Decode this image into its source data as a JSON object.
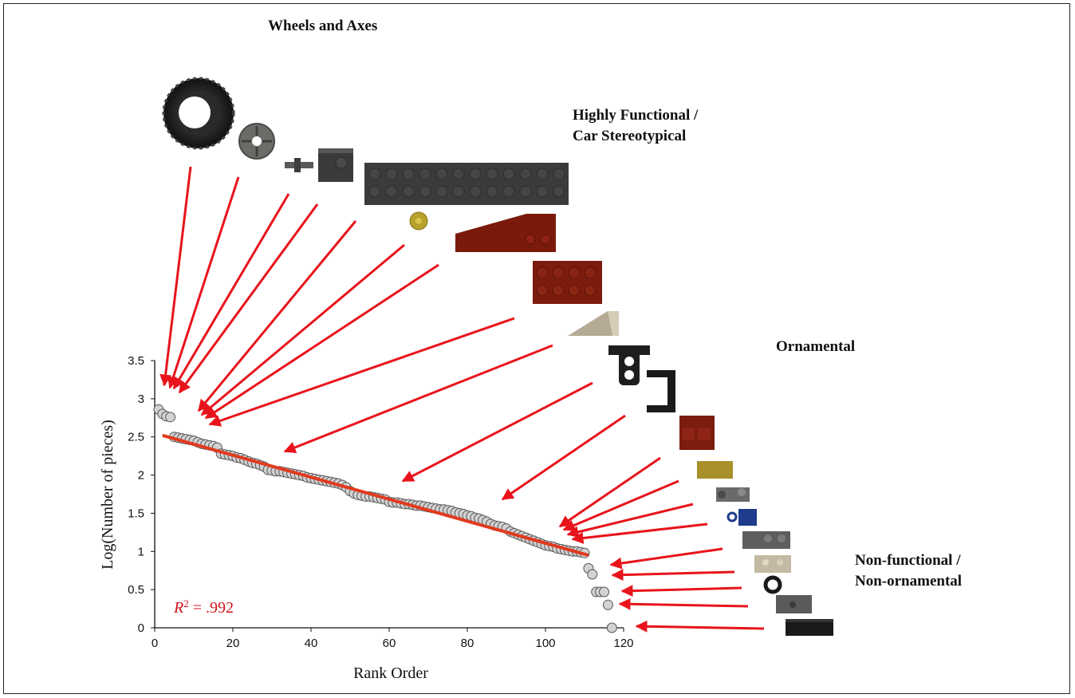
{
  "categories": {
    "wheels": "Wheels and Axes",
    "functional_line1": "Highly Functional /",
    "functional_line2": "Car Stereotypical",
    "ornamental": "Ornamental",
    "nonfunc_line1": "Non-functional /",
    "nonfunc_line2": "Non-ornamental"
  },
  "annotation": {
    "r2_label": "R",
    "r2_sup": "2",
    "r2_value": " = .992"
  },
  "colors": {
    "arrow": "#e8141c",
    "fit": "#e23a1e",
    "marker_fill": "#d2d2d2",
    "marker_stroke": "#555555"
  },
  "pieces": [
    {
      "name": "tire-icon"
    },
    {
      "name": "wheel-rim-icon"
    },
    {
      "name": "axle-pin-icon"
    },
    {
      "name": "dark-gray-brick-icon"
    },
    {
      "name": "long-plate-icon"
    },
    {
      "name": "round-tile-icon"
    },
    {
      "name": "red-slope-icon"
    },
    {
      "name": "red-brick-2x4-icon"
    },
    {
      "name": "tan-slope-icon"
    },
    {
      "name": "technic-beam-icon"
    },
    {
      "name": "bracket-icon"
    },
    {
      "name": "red-brick-small-icon"
    },
    {
      "name": "tan-tile-icon"
    },
    {
      "name": "clip-plate-icon"
    },
    {
      "name": "blue-clip-icon"
    },
    {
      "name": "gray-plate-icon"
    },
    {
      "name": "tan-plate-icon"
    },
    {
      "name": "round-plate-icon"
    },
    {
      "name": "jumper-plate-icon"
    },
    {
      "name": "black-tile-icon"
    }
  ],
  "chart_data": {
    "type": "scatter",
    "title": "",
    "xlabel": "Rank Order",
    "ylabel": "Log(Number of pieces)",
    "xlim": [
      0,
      120
    ],
    "ylim": [
      0,
      3.5
    ],
    "xticks": [
      "0",
      "20",
      "40",
      "60",
      "80",
      "100",
      "120"
    ],
    "yticks": [
      "0",
      "0.5",
      "1",
      "1.5",
      "2",
      "2.5",
      "3",
      "3.5"
    ],
    "grid": false,
    "legend": "none",
    "fit_line": {
      "x": [
        2,
        111
      ],
      "y": [
        2.52,
        0.95
      ],
      "r_squared": 0.992
    },
    "series": [
      {
        "x": [
          1,
          2,
          3,
          4,
          5,
          6,
          7,
          8,
          9,
          10,
          11,
          12,
          13,
          14,
          15,
          16,
          17,
          18,
          19,
          20,
          21,
          22,
          23,
          24,
          25,
          26,
          27,
          28,
          29,
          30,
          31,
          32,
          33,
          34,
          35,
          36,
          37,
          38,
          39,
          40,
          41,
          42,
          43,
          44,
          45,
          46,
          47,
          48,
          49,
          50,
          51,
          52,
          53,
          54,
          55,
          56,
          57,
          58,
          59,
          60,
          61,
          62,
          63,
          64,
          65,
          66,
          67,
          68,
          69,
          70,
          71,
          72,
          73,
          74,
          75,
          76,
          77,
          78,
          79,
          80,
          81,
          82,
          83,
          84,
          85,
          86,
          87,
          88,
          89,
          90,
          91,
          92,
          93,
          94,
          95,
          96,
          97,
          98,
          99,
          100,
          101,
          102,
          103,
          104,
          105,
          106,
          107,
          108,
          109,
          110,
          111,
          112,
          113,
          114,
          115,
          116,
          117
        ],
        "y": [
          2.86,
          2.8,
          2.77,
          2.76,
          2.5,
          2.49,
          2.48,
          2.47,
          2.46,
          2.45,
          2.43,
          2.41,
          2.4,
          2.39,
          2.38,
          2.36,
          2.28,
          2.27,
          2.26,
          2.25,
          2.23,
          2.22,
          2.2,
          2.18,
          2.16,
          2.15,
          2.13,
          2.11,
          2.07,
          2.06,
          2.05,
          2.05,
          2.04,
          2.03,
          2.02,
          2.01,
          2.0,
          1.99,
          1.97,
          1.96,
          1.95,
          1.94,
          1.93,
          1.92,
          1.91,
          1.9,
          1.89,
          1.87,
          1.84,
          1.79,
          1.76,
          1.74,
          1.73,
          1.72,
          1.72,
          1.71,
          1.7,
          1.69,
          1.68,
          1.65,
          1.64,
          1.64,
          1.63,
          1.62,
          1.62,
          1.61,
          1.6,
          1.6,
          1.59,
          1.58,
          1.57,
          1.56,
          1.55,
          1.55,
          1.54,
          1.53,
          1.51,
          1.5,
          1.49,
          1.47,
          1.46,
          1.44,
          1.43,
          1.41,
          1.39,
          1.36,
          1.34,
          1.33,
          1.32,
          1.3,
          1.26,
          1.24,
          1.22,
          1.2,
          1.18,
          1.16,
          1.14,
          1.12,
          1.1,
          1.08,
          1.07,
          1.06,
          1.04,
          1.03,
          1.02,
          1.01,
          1.0,
          1.0,
          0.99,
          0.98,
          0.78,
          0.7,
          0.47,
          0.47,
          0.47,
          0.3,
          0.0
        ]
      }
    ]
  }
}
